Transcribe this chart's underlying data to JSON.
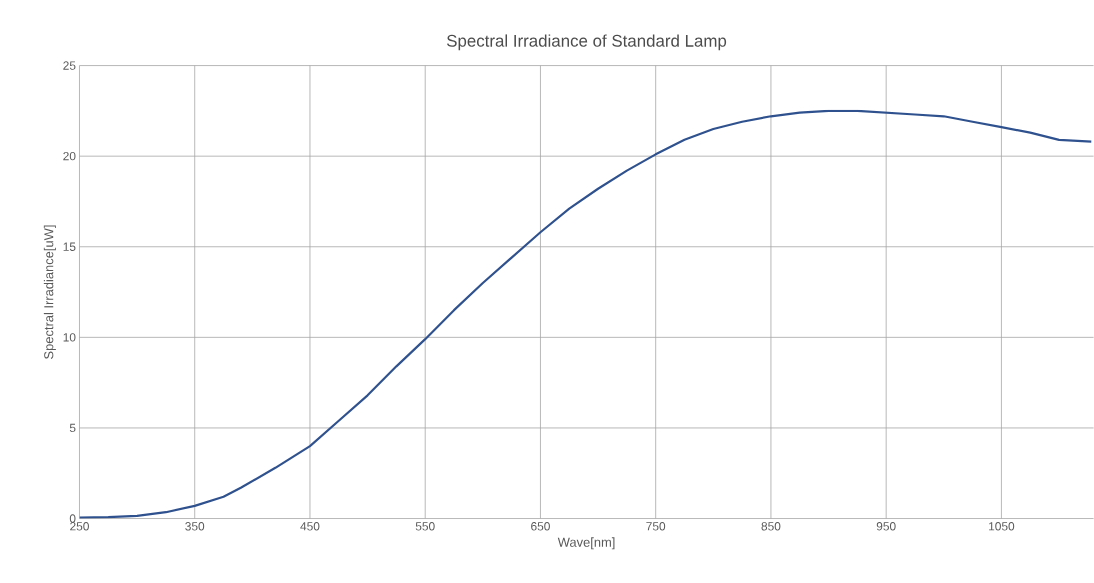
{
  "chart_data": {
    "type": "line",
    "title": "Spectral Irradiance of Standard Lamp",
    "xlabel": "Wave[nm]",
    "ylabel": "Spectral Irradiance[uW]",
    "x": [
      250,
      275,
      300,
      325,
      350,
      375,
      390,
      420,
      450,
      475,
      500,
      525,
      550,
      575,
      600,
      625,
      650,
      675,
      700,
      725,
      750,
      775,
      800,
      825,
      850,
      875,
      900,
      925,
      950,
      975,
      1000,
      1025,
      1050,
      1075,
      1100,
      1128
    ],
    "series": [
      {
        "color": "#2f528f",
        "values": [
          0.05,
          0.08,
          0.15,
          0.35,
          0.7,
          1.2,
          1.7,
          2.8,
          4.0,
          5.4,
          6.8,
          8.4,
          9.9,
          11.5,
          13.0,
          14.4,
          15.8,
          17.1,
          18.2,
          19.2,
          20.1,
          20.9,
          21.5,
          21.9,
          22.2,
          22.4,
          22.5,
          22.5,
          22.4,
          22.3,
          22.2,
          21.9,
          21.6,
          21.3,
          20.9,
          20.8
        ]
      }
    ],
    "xlim": [
      250,
      1130
    ],
    "ylim": [
      0,
      25
    ],
    "xticks": [
      250,
      350,
      450,
      550,
      650,
      750,
      850,
      950,
      1050
    ],
    "yticks": [
      0,
      5,
      10,
      15,
      20,
      25
    ],
    "grid": true,
    "marker": "none",
    "line_style": "solid"
  }
}
